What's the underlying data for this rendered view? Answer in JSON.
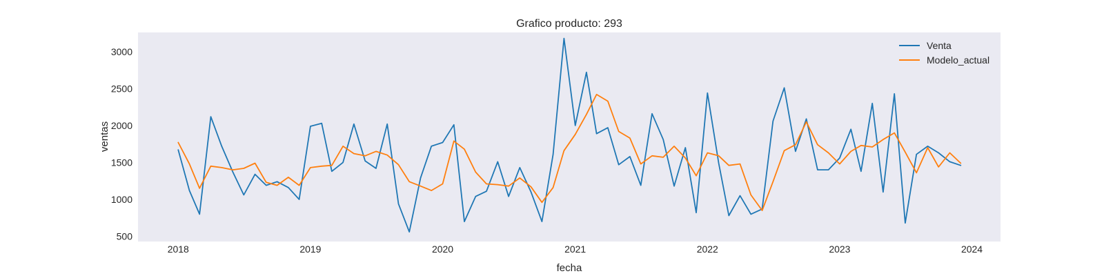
{
  "chart_data": {
    "type": "line",
    "title": "Grafico producto: 293",
    "xlabel": "fecha",
    "ylabel": "ventas",
    "x_ticks": [
      "2018",
      "2019",
      "2020",
      "2021",
      "2022",
      "2023",
      "2024"
    ],
    "y_ticks": [
      500,
      1000,
      1500,
      2000,
      2500,
      3000
    ],
    "ylim": [
      430,
      3260
    ],
    "xlim": [
      "2017-09-12",
      "2024-03-20"
    ],
    "grid": false,
    "legend": "top-right",
    "x": [
      "2018-01",
      "2018-02",
      "2018-03",
      "2018-04",
      "2018-05",
      "2018-06",
      "2018-07",
      "2018-08",
      "2018-09",
      "2018-10",
      "2018-11",
      "2018-12",
      "2019-01",
      "2019-02",
      "2019-03",
      "2019-04",
      "2019-05",
      "2019-06",
      "2019-07",
      "2019-08",
      "2019-09",
      "2019-10",
      "2019-11",
      "2019-12",
      "2020-01",
      "2020-02",
      "2020-03",
      "2020-04",
      "2020-05",
      "2020-06",
      "2020-07",
      "2020-08",
      "2020-09",
      "2020-10",
      "2020-11",
      "2020-12",
      "2021-01",
      "2021-02",
      "2021-03",
      "2021-04",
      "2021-05",
      "2021-06",
      "2021-07",
      "2021-08",
      "2021-09",
      "2021-10",
      "2021-11",
      "2021-12",
      "2022-01",
      "2022-02",
      "2022-03",
      "2022-04",
      "2022-05",
      "2022-06",
      "2022-07",
      "2022-08",
      "2022-09",
      "2022-10",
      "2022-11",
      "2022-12",
      "2023-01",
      "2023-02",
      "2023-03",
      "2023-04",
      "2023-05",
      "2023-06",
      "2023-07",
      "2023-08",
      "2023-09",
      "2023-10",
      "2023-11",
      "2023-12"
    ],
    "series": [
      {
        "name": "Venta",
        "color": "#1f77b4",
        "values": [
          1670,
          1120,
          800,
          2120,
          1720,
          1370,
          1060,
          1340,
          1190,
          1240,
          1160,
          1000,
          1990,
          2030,
          1380,
          1500,
          2020,
          1520,
          1420,
          2020,
          940,
          560,
          1290,
          1720,
          1770,
          2010,
          700,
          1040,
          1110,
          1510,
          1040,
          1430,
          1100,
          700,
          1610,
          3180,
          2000,
          2720,
          1890,
          1970,
          1470,
          1580,
          1190,
          2160,
          1810,
          1180,
          1700,
          820,
          2440,
          1490,
          780,
          1050,
          800,
          870,
          2060,
          2510,
          1650,
          2090,
          1400,
          1400,
          1560,
          1950,
          1380,
          2300,
          1100,
          2430,
          680,
          1610,
          1720,
          1630,
          1510,
          1460
        ]
      },
      {
        "name": "Modelo_actual",
        "color": "#ff7f0e",
        "values": [
          1770,
          1480,
          1150,
          1450,
          1430,
          1400,
          1420,
          1490,
          1230,
          1190,
          1300,
          1190,
          1430,
          1450,
          1460,
          1720,
          1620,
          1590,
          1650,
          1600,
          1470,
          1240,
          1180,
          1120,
          1210,
          1790,
          1680,
          1370,
          1210,
          1200,
          1180,
          1290,
          1170,
          960,
          1160,
          1660,
          1880,
          2150,
          2420,
          2330,
          1920,
          1830,
          1480,
          1590,
          1570,
          1720,
          1560,
          1320,
          1630,
          1590,
          1460,
          1480,
          1060,
          850,
          1240,
          1660,
          1740,
          2050,
          1740,
          1630,
          1480,
          1650,
          1730,
          1710,
          1810,
          1900,
          1640,
          1360,
          1700,
          1440,
          1630,
          1490
        ]
      }
    ]
  }
}
